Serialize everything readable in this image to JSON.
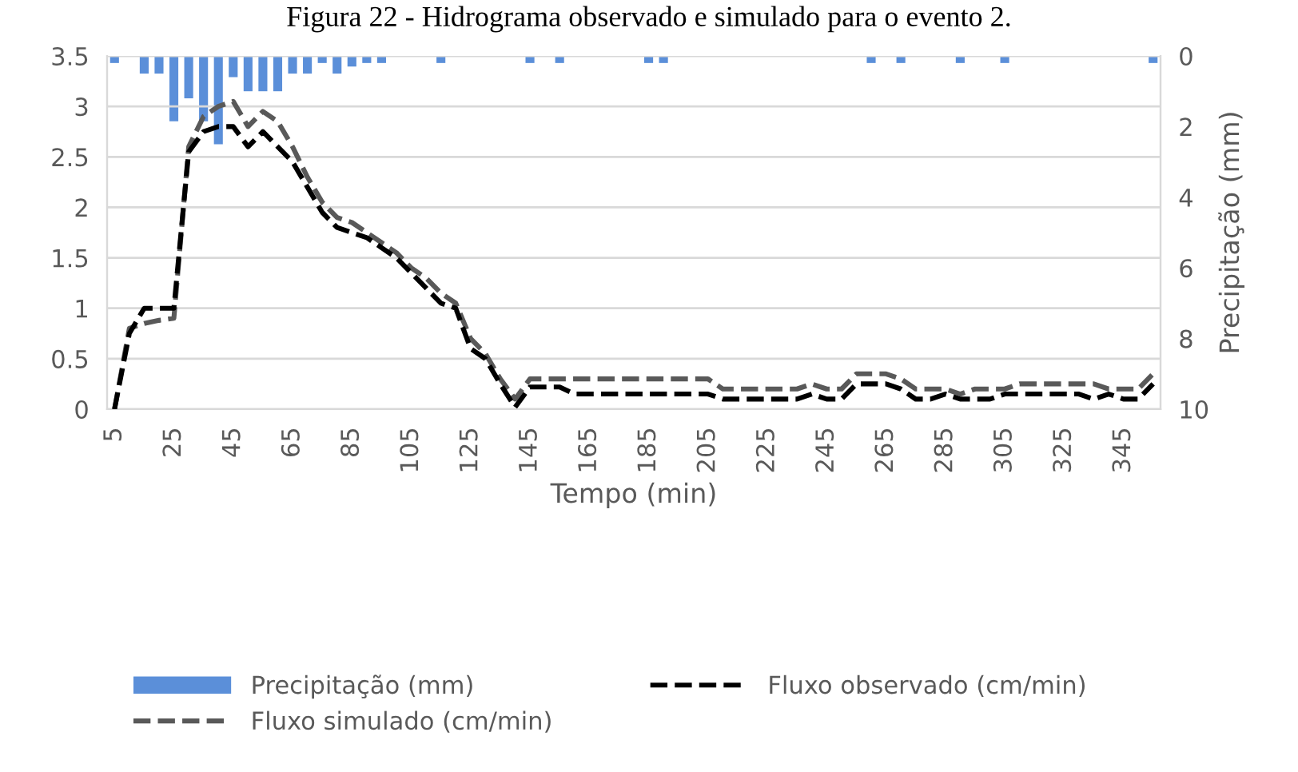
{
  "chart_data": {
    "type": "line",
    "title": "Figura 22 - Hidrograma observado e simulado para o evento 2.",
    "xlabel": "Tempo (min)",
    "y2label": "Precipitação (mm)",
    "categories": [
      "5",
      null,
      null,
      null,
      "25",
      null,
      null,
      null,
      "45",
      null,
      null,
      null,
      "65",
      null,
      null,
      null,
      "85",
      null,
      null,
      null,
      "105",
      null,
      null,
      null,
      "125",
      null,
      null,
      null,
      "145",
      null,
      null,
      null,
      "165",
      null,
      null,
      null,
      "185",
      null,
      null,
      null,
      "205",
      null,
      null,
      null,
      "225",
      null,
      null,
      null,
      "245",
      null,
      null,
      null,
      "265",
      null,
      null,
      null,
      "285",
      null,
      null,
      null,
      "305",
      null,
      null,
      null,
      "325",
      null,
      null,
      null,
      "345",
      null,
      null
    ],
    "series": [
      {
        "name": "Precipitação (mm)",
        "type": "bar",
        "axis": "y2",
        "color": "#5b8fd9",
        "values": [
          0.2,
          0,
          0.5,
          0.5,
          1.85,
          1.2,
          1.85,
          2.5,
          0.6,
          1.0,
          1.0,
          1.0,
          0.5,
          0.5,
          0.2,
          0.5,
          0.3,
          0.2,
          0.2,
          0,
          0,
          0,
          0.2,
          0,
          0,
          0,
          0,
          0,
          0.2,
          0,
          0.2,
          0,
          0,
          0,
          0,
          0,
          0.2,
          0.2,
          0,
          0,
          0,
          0,
          0,
          0,
          0,
          0,
          0,
          0,
          0,
          0,
          0,
          0.2,
          0,
          0.2,
          0,
          0,
          0,
          0.2,
          0,
          0,
          0.2,
          0,
          0,
          0,
          0,
          0,
          0,
          0,
          0,
          0,
          0.2
        ]
      },
      {
        "name": "Fluxo simulado (cm/min)",
        "color": "#595959",
        "line_style": "dashed",
        "values": [
          0,
          0.8,
          0.85,
          0.88,
          0.9,
          2.6,
          2.9,
          3.0,
          3.05,
          2.8,
          2.95,
          2.85,
          2.6,
          2.3,
          2.05,
          1.9,
          1.85,
          1.75,
          1.65,
          1.55,
          1.4,
          1.3,
          1.15,
          1.05,
          0.7,
          0.55,
          0.3,
          0.1,
          0.3,
          0.3,
          0.3,
          0.3,
          0.3,
          0.3,
          0.3,
          0.3,
          0.3,
          0.3,
          0.3,
          0.3,
          0.3,
          0.2,
          0.2,
          0.2,
          0.2,
          0.2,
          0.2,
          0.25,
          0.2,
          0.2,
          0.35,
          0.35,
          0.35,
          0.3,
          0.2,
          0.2,
          0.2,
          0.15,
          0.2,
          0.2,
          0.2,
          0.25,
          0.25,
          0.25,
          0.25,
          0.25,
          0.25,
          0.2,
          0.2,
          0.2,
          0.35
        ]
      },
      {
        "name": "Fluxo observado (cm/min)",
        "color": "#000000",
        "line_style": "dashed",
        "values": [
          0,
          0.75,
          1.0,
          1.0,
          1.0,
          2.55,
          2.75,
          2.8,
          2.8,
          2.6,
          2.75,
          2.6,
          2.45,
          2.2,
          1.95,
          1.8,
          1.75,
          1.7,
          1.6,
          1.5,
          1.35,
          1.2,
          1.05,
          1.0,
          0.6,
          0.5,
          0.25,
          0.02,
          0.22,
          0.22,
          0.22,
          0.15,
          0.15,
          0.15,
          0.15,
          0.15,
          0.15,
          0.15,
          0.15,
          0.15,
          0.15,
          0.1,
          0.1,
          0.1,
          0.1,
          0.1,
          0.1,
          0.15,
          0.1,
          0.1,
          0.25,
          0.25,
          0.25,
          0.2,
          0.1,
          0.1,
          0.15,
          0.1,
          0.1,
          0.1,
          0.15,
          0.15,
          0.15,
          0.15,
          0.15,
          0.15,
          0.1,
          0.15,
          0.1,
          0.1,
          0.25
        ]
      }
    ],
    "ylim": [
      0,
      3.5
    ],
    "yticks": [
      0,
      0.5,
      1,
      1.5,
      2,
      2.5,
      3,
      3.5
    ],
    "y2lim": [
      10,
      0
    ],
    "y2ticks": [
      0,
      2,
      4,
      6,
      8,
      10
    ],
    "grid": "y",
    "legend": "bottom",
    "marker": "none"
  }
}
